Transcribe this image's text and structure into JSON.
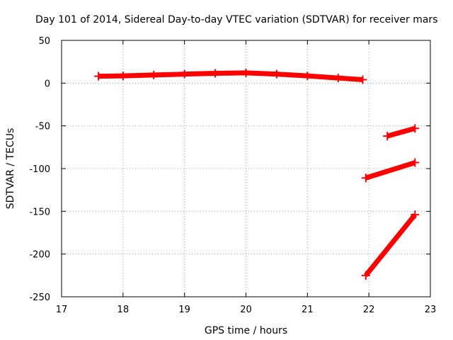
{
  "chart_data": {
    "type": "scatter",
    "title": "Day 101 of 2014, Sidereal Day-to-day VTEC variation (SDTVAR) for receiver mars",
    "xlabel": "GPS time / hours",
    "ylabel": "SDTVAR / TECUs",
    "xlim": [
      17,
      23
    ],
    "ylim": [
      -250,
      50
    ],
    "xticks": [
      17,
      18,
      19,
      20,
      21,
      22,
      23
    ],
    "yticks": [
      50,
      0,
      -50,
      -100,
      -150,
      -200,
      -250
    ],
    "grid": true,
    "legend": "none",
    "color": "#ff0000",
    "series": [
      {
        "x": [
          17.6,
          18.0,
          18.5,
          19.0,
          19.5,
          20.0,
          20.5,
          21.0,
          21.5,
          21.9
        ],
        "y": [
          8,
          8.5,
          9.5,
          10.5,
          11.5,
          12,
          10.5,
          8.5,
          6,
          4
        ]
      },
      {
        "x": [
          22.3,
          22.75
        ],
        "y": [
          -62,
          -53
        ]
      },
      {
        "x": [
          21.95,
          22.75
        ],
        "y": [
          -111,
          -93
        ]
      },
      {
        "x": [
          21.95,
          22.75
        ],
        "y": [
          -225,
          -154
        ]
      }
    ]
  }
}
